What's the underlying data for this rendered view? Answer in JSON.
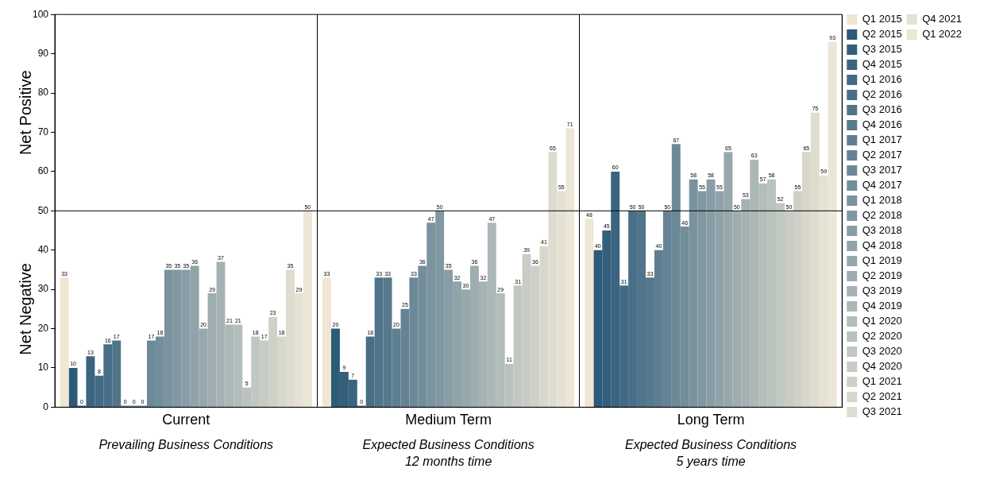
{
  "chart_data": {
    "type": "bar",
    "categories": [
      "Current",
      "Medium Term",
      "Long Term"
    ],
    "ylim": [
      0,
      100
    ],
    "yticks": [
      0,
      10,
      20,
      30,
      40,
      50,
      60,
      70,
      80,
      90,
      100
    ],
    "grid": "x",
    "legend": "right",
    "data_labels": true,
    "ref_lines": [
      {
        "axis": "y",
        "value": 50,
        "color": "#000000"
      }
    ],
    "annotations": [
      "Net Positive",
      "Net Negative",
      "Prevailing Business Conditions",
      "Expected Business Conditions\n12 months time",
      "Expected Business Conditions\n5 years time"
    ],
    "series": [
      {
        "name": "Q1 2015",
        "color": "#efe6d3",
        "values": [
          33,
          33,
          48
        ]
      },
      {
        "name": "Q2 2015",
        "color": "#2c5a79",
        "values": [
          10,
          20,
          40
        ]
      },
      {
        "name": "Q3 2015",
        "color": "#335f7c",
        "values": [
          0,
          9,
          45
        ]
      },
      {
        "name": "Q4 2015",
        "color": "#3a647f",
        "values": [
          13,
          7,
          60
        ]
      },
      {
        "name": "Q1 2016",
        "color": "#416a83",
        "values": [
          8,
          0,
          31
        ]
      },
      {
        "name": "Q2 2016",
        "color": "#486f87",
        "values": [
          16,
          18,
          50
        ]
      },
      {
        "name": "Q3 2016",
        "color": "#50748a",
        "values": [
          17,
          33,
          50
        ]
      },
      {
        "name": "Q4 2016",
        "color": "#57798e",
        "values": [
          0,
          33,
          33
        ]
      },
      {
        "name": "Q1 2017",
        "color": "#5e7e91",
        "values": [
          0,
          20,
          40
        ]
      },
      {
        "name": "Q2 2017",
        "color": "#658395",
        "values": [
          0,
          25,
          50
        ]
      },
      {
        "name": "Q3 2017",
        "color": "#6c8998",
        "values": [
          17,
          33,
          67
        ]
      },
      {
        "name": "Q4 2017",
        "color": "#738e9b",
        "values": [
          18,
          36,
          46
        ]
      },
      {
        "name": "Q1 2018",
        "color": "#7a939f",
        "values": [
          35,
          47,
          58
        ]
      },
      {
        "name": "Q2 2018",
        "color": "#8198a2",
        "values": [
          35,
          50,
          55
        ]
      },
      {
        "name": "Q3 2018",
        "color": "#889da6",
        "values": [
          35,
          35,
          58
        ]
      },
      {
        "name": "Q4 2018",
        "color": "#90a3a9",
        "values": [
          36,
          32,
          55
        ]
      },
      {
        "name": "Q1 2019",
        "color": "#97a8ad",
        "values": [
          20,
          30,
          65
        ]
      },
      {
        "name": "Q2 2019",
        "color": "#9eadb0",
        "values": [
          29,
          36,
          50
        ]
      },
      {
        "name": "Q3 2019",
        "color": "#a5b2b4",
        "values": [
          37,
          32,
          53
        ]
      },
      {
        "name": "Q4 2019",
        "color": "#acb7b7",
        "values": [
          21,
          47,
          63
        ]
      },
      {
        "name": "Q1 2020",
        "color": "#b3bdba",
        "values": [
          21,
          29,
          57
        ]
      },
      {
        "name": "Q2 2020",
        "color": "#bac2be",
        "values": [
          5,
          11,
          58
        ]
      },
      {
        "name": "Q3 2020",
        "color": "#c1c7c1",
        "values": [
          18,
          31,
          52
        ]
      },
      {
        "name": "Q4 2020",
        "color": "#c8ccc5",
        "values": [
          17,
          39,
          50
        ]
      },
      {
        "name": "Q1 2021",
        "color": "#cfd1c8",
        "values": [
          23,
          36,
          55
        ]
      },
      {
        "name": "Q2 2021",
        "color": "#d7d7cc",
        "values": [
          18,
          41,
          65
        ]
      },
      {
        "name": "Q3 2021",
        "color": "#dedccf",
        "values": [
          35,
          65,
          75
        ]
      },
      {
        "name": "Q4 2021",
        "color": "#e5e1d3",
        "values": [
          29,
          55,
          59
        ]
      },
      {
        "name": "Q1 2022",
        "color": "#ece6d6",
        "values": [
          50,
          71,
          93
        ]
      }
    ]
  }
}
